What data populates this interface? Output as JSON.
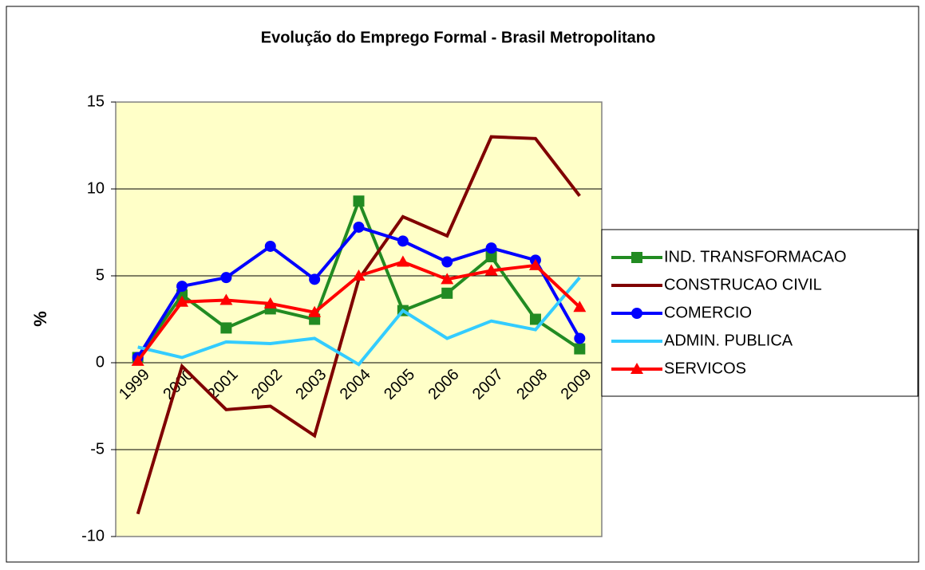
{
  "chart_data": {
    "type": "line",
    "title": "Evolução do Emprego Formal - Brasil Metropolitano",
    "y_label": "%",
    "categories": [
      "1999",
      "2000",
      "2001",
      "2002",
      "2003",
      "2004",
      "2005",
      "2006",
      "2007",
      "2008",
      "2009"
    ],
    "series": [
      {
        "name": "IND. TRANSFORMACAO",
        "color": "#228b22",
        "marker": "square",
        "values": [
          0.3,
          3.9,
          2.0,
          3.1,
          2.5,
          9.3,
          3.0,
          4.0,
          6.1,
          2.5,
          0.8
        ]
      },
      {
        "name": "CONSTRUCAO CIVIL",
        "color": "#800000",
        "marker": "none",
        "values": [
          -8.7,
          -0.2,
          -2.7,
          -2.5,
          -4.2,
          4.8,
          8.4,
          7.3,
          13.0,
          12.9,
          9.6
        ]
      },
      {
        "name": "COMERCIO",
        "color": "#0000ff",
        "marker": "circle",
        "values": [
          0.3,
          4.4,
          4.9,
          6.7,
          4.8,
          7.8,
          7.0,
          5.8,
          6.6,
          5.9,
          1.4
        ]
      },
      {
        "name": "ADMIN. PUBLICA",
        "color": "#33ccff",
        "marker": "none",
        "values": [
          0.9,
          0.3,
          1.2,
          1.1,
          1.4,
          -0.1,
          3.0,
          1.4,
          2.4,
          1.9,
          4.9
        ]
      },
      {
        "name": "SERVICOS",
        "color": "#ff0000",
        "marker": "triangle",
        "values": [
          0.1,
          3.5,
          3.6,
          3.4,
          2.9,
          5.0,
          5.8,
          4.8,
          5.3,
          5.6,
          3.2
        ]
      }
    ],
    "ylim": [
      -10,
      15
    ],
    "yticks": [
      -10,
      -5,
      0,
      5,
      10,
      15
    ],
    "grid": true,
    "legend": "right"
  }
}
